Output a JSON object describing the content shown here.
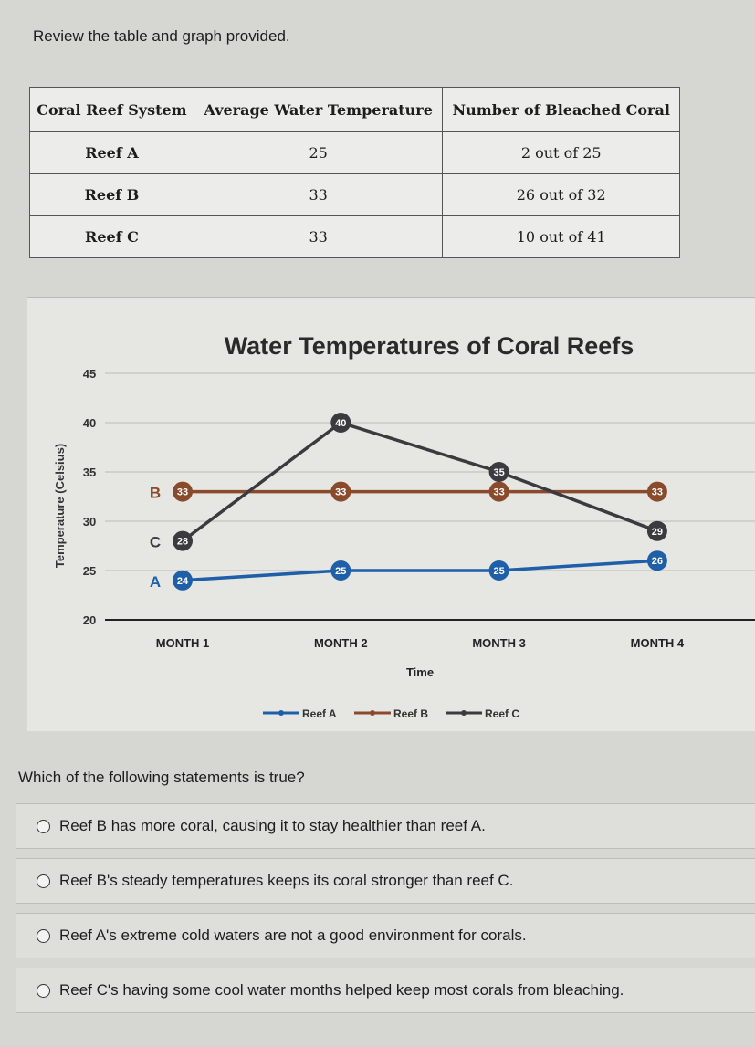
{
  "prompt": "Review the table and graph provided.",
  "table": {
    "headers": [
      "Coral Reef System",
      "Average Water Temperature",
      "Number of Bleached Coral"
    ],
    "rows": [
      [
        "Reef A",
        "25",
        "2 out of 25"
      ],
      [
        "Reef B",
        "33",
        "26 out of 32"
      ],
      [
        "Reef C",
        "33",
        "10 out of 41"
      ]
    ]
  },
  "chart_data": {
    "type": "line",
    "title": "Water Temperatures of Coral Reefs",
    "xlabel": "Time",
    "ylabel": "Temperature (Celsius)",
    "categories": [
      "MONTH 1",
      "MONTH 2",
      "MONTH 3",
      "MONTH 4"
    ],
    "ylim": [
      20,
      45
    ],
    "yticks": [
      "20",
      "25",
      "30",
      "35",
      "40",
      "45"
    ],
    "grid": true,
    "legend": "bottom",
    "series": [
      {
        "name": "Reef A",
        "label": "A",
        "values": [
          24,
          25,
          25,
          26
        ],
        "color": "#1f5fa8"
      },
      {
        "name": "Reef B",
        "label": "B",
        "values": [
          33,
          33,
          33,
          33
        ],
        "color": "#8a4a2c"
      },
      {
        "name": "Reef C",
        "label": "C",
        "values": [
          28,
          40,
          35,
          29
        ],
        "color": "#3a3a3f"
      }
    ]
  },
  "question": "Which of the following statements is true?",
  "options": [
    "Reef B has more coral, causing it to stay healthier than reef A.",
    "Reef B's steady temperatures keeps its coral stronger than reef C.",
    "Reef A's extreme cold waters are not a good environment for corals.",
    "Reef C's having some cool water months helped keep most corals from bleaching."
  ]
}
